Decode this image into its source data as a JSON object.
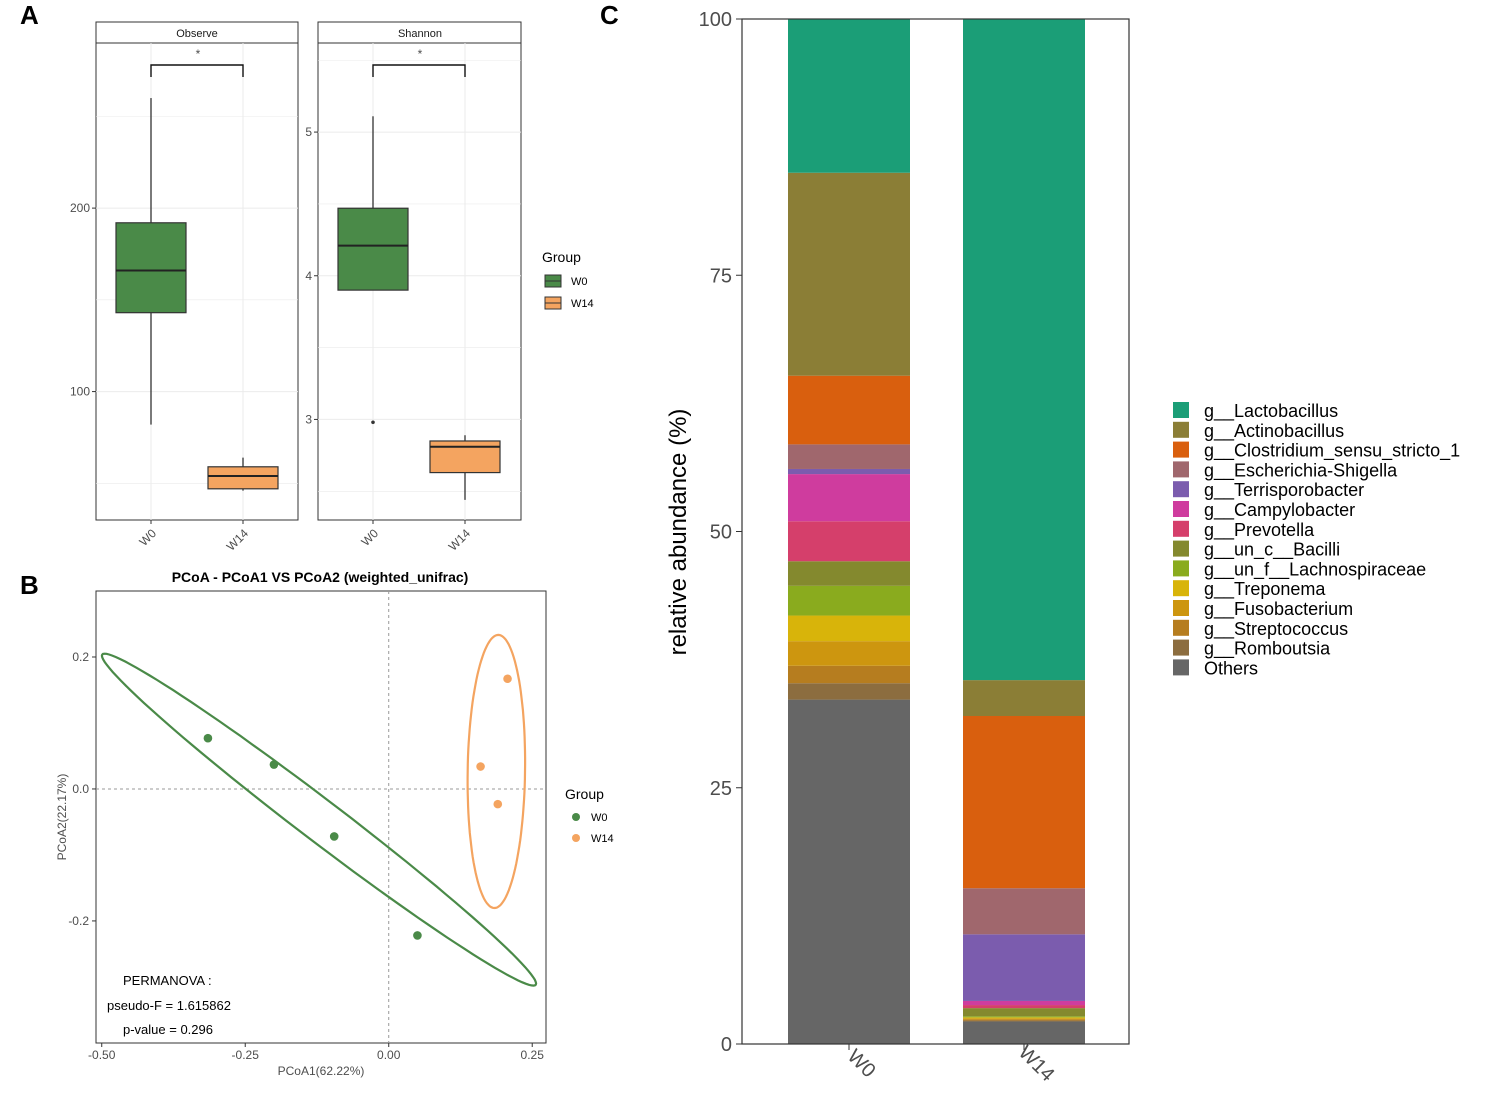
{
  "colors": {
    "W0": "#4a8a48",
    "W14": "#f4a460",
    "ellipse_W0": "#4a8a48",
    "ellipse_W14": "#f4a460",
    "grid": "#ebebeb",
    "axis": "#333333"
  },
  "panel_labels": {
    "a": "A",
    "b": "B",
    "c": "C"
  },
  "chart_data": [
    {
      "id": "A-observe",
      "type": "box",
      "facet": "Observe",
      "categories": [
        "W0",
        "W14"
      ],
      "boxes": [
        {
          "group": "W0",
          "min": 82,
          "q1": 143,
          "median": 166,
          "q3": 192,
          "max": 260,
          "outliers": []
        },
        {
          "group": "W14",
          "min": 46,
          "q1": 47,
          "median": 54,
          "q3": 59,
          "max": 64,
          "outliers": []
        }
      ],
      "significance": "*",
      "yticks": [
        100,
        200
      ],
      "ylim": [
        30,
        290
      ]
    },
    {
      "id": "A-shannon",
      "type": "box",
      "facet": "Shannon",
      "categories": [
        "W0",
        "W14"
      ],
      "boxes": [
        {
          "group": "W0",
          "min": 3.9,
          "q1": 3.9,
          "median": 4.21,
          "q3": 4.47,
          "max": 5.11,
          "outliers": [
            2.98
          ]
        },
        {
          "group": "W14",
          "min": 2.44,
          "q1": 2.63,
          "median": 2.81,
          "q3": 2.85,
          "max": 2.89,
          "outliers": []
        }
      ],
      "significance": "*",
      "yticks": [
        3,
        4,
        5
      ],
      "ylim": [
        2.3,
        5.62
      ]
    },
    {
      "id": "A-legend",
      "type": "legend",
      "title": "Group",
      "entries": [
        "W0",
        "W14"
      ]
    },
    {
      "id": "B",
      "type": "scatter",
      "title": "PCoA - PCoA1 VS PCoA2 (weighted_unifrac)",
      "xlabel": "PCoA1(62.22%)",
      "ylabel": "PCoA2(22.17%)",
      "xlim": [
        -0.51,
        0.274
      ],
      "ylim": [
        -0.385,
        0.3
      ],
      "xticks": [
        "-0.50",
        "-0.25",
        "0.00",
        "0.25"
      ],
      "yticks": [
        "-0.2",
        "0.0",
        "0.2"
      ],
      "series": [
        {
          "name": "W0",
          "points": [
            [
              -0.315,
              0.077
            ],
            [
              -0.2,
              0.037
            ],
            [
              -0.095,
              -0.072
            ],
            [
              0.05,
              -0.222
            ]
          ]
        },
        {
          "name": "W14",
          "points": [
            [
              0.207,
              0.167
            ],
            [
              0.16,
              0.034
            ],
            [
              0.19,
              -0.023
            ]
          ]
        }
      ],
      "ellipses": [
        {
          "group": "W0",
          "center": [
            -0.1215,
            -0.0465
          ],
          "a": 0.453,
          "b": 0.033,
          "angle_deg": -33.5
        },
        {
          "group": "W14",
          "center": [
            0.1875,
            0.0265
          ],
          "a": 0.207,
          "b": 0.05,
          "angle_deg": 89.0
        }
      ],
      "legend": {
        "title": "Group",
        "entries": [
          "W0",
          "W14"
        ]
      },
      "annotation": [
        "PERMANOVA :",
        "pseudo-F = 1.615862",
        "p-value = 0.296"
      ]
    },
    {
      "id": "C",
      "type": "stacked_bar",
      "categories": [
        "W0",
        "W14"
      ],
      "ylabel": "relative abundance (%)",
      "ylim": [
        0,
        100
      ],
      "yticks": [
        0,
        25,
        50,
        75,
        100
      ],
      "series": [
        {
          "name": "g__Lactobacillus",
          "color": "#1b9e77",
          "values": [
            15.0,
            64.5
          ]
        },
        {
          "name": "g__Actinobacillus",
          "color": "#8b7e36",
          "values": [
            19.8,
            3.5
          ]
        },
        {
          "name": "g__Clostridium_sensu_stricto_1",
          "color": "#d95f0e",
          "values": [
            6.7,
            16.8
          ]
        },
        {
          "name": "g__Escherichia-Shigella",
          "color": "#a0676d",
          "values": [
            2.4,
            4.5
          ]
        },
        {
          "name": "g__Terrisporobacter",
          "color": "#7b5cae",
          "values": [
            0.5,
            6.5
          ]
        },
        {
          "name": "g__Campylobacter",
          "color": "#cf3c9e",
          "values": [
            4.6,
            0.4
          ]
        },
        {
          "name": "g__Prevotella",
          "color": "#d53f6b",
          "values": [
            3.9,
            0.3
          ]
        },
        {
          "name": "g__un_c__Bacilli",
          "color": "#84892e",
          "values": [
            2.4,
            0.8
          ]
        },
        {
          "name": "g__un_f__Lachnospiraceae",
          "color": "#8aab1e",
          "values": [
            2.9,
            0.1
          ]
        },
        {
          "name": "g__Treponema",
          "color": "#d8b40a",
          "values": [
            2.5,
            0.1
          ]
        },
        {
          "name": "g__Fusobacterium",
          "color": "#cd960f",
          "values": [
            2.4,
            0.1
          ]
        },
        {
          "name": "g__Streptococcus",
          "color": "#b67d1f",
          "values": [
            1.7,
            0.1
          ]
        },
        {
          "name": "g__Romboutsia",
          "color": "#8c6d3f",
          "values": [
            1.6,
            0.1
          ]
        },
        {
          "name": "Others",
          "color": "#666666",
          "values": [
            33.6,
            2.2
          ]
        }
      ]
    }
  ]
}
